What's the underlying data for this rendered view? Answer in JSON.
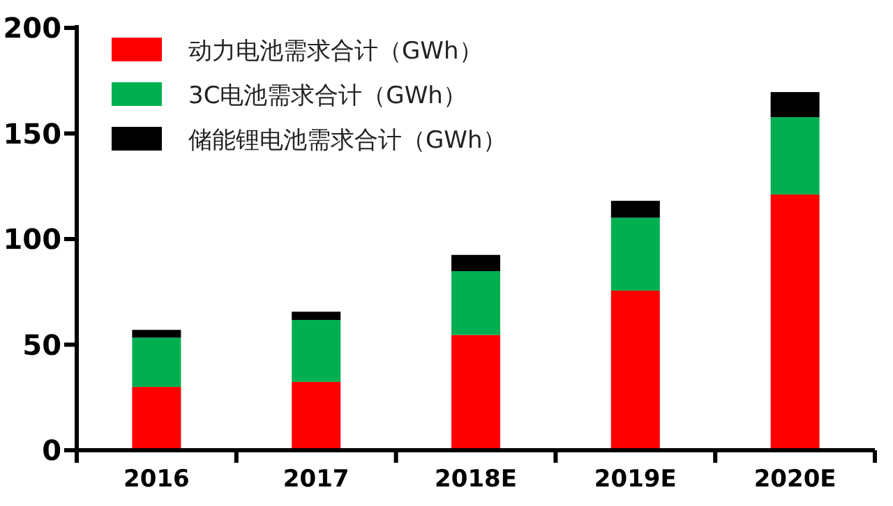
{
  "chart_data": {
    "type": "bar",
    "stacked": true,
    "categories": [
      "2016",
      "2017",
      "2018E",
      "2019E",
      "2020E"
    ],
    "series": [
      {
        "name": "动力电池需求合计（GWh）",
        "color": "#ff0000",
        "values": [
          30,
          32.4,
          54.6,
          75.6,
          121.1
        ]
      },
      {
        "name": "3C电池需求合计（GWh）",
        "color": "#00b050",
        "values": [
          23.3,
          29.3,
          30.2,
          34.5,
          36.6
        ]
      },
      {
        "name": "储能锂电池需求合计（GWh）",
        "color": "#000000",
        "values": [
          3.7,
          3.9,
          7.7,
          8,
          11.9
        ]
      }
    ],
    "ylim": [
      0,
      200
    ],
    "yticks": [
      0,
      50,
      100,
      150,
      200
    ],
    "grid": false,
    "legend": "top left"
  }
}
